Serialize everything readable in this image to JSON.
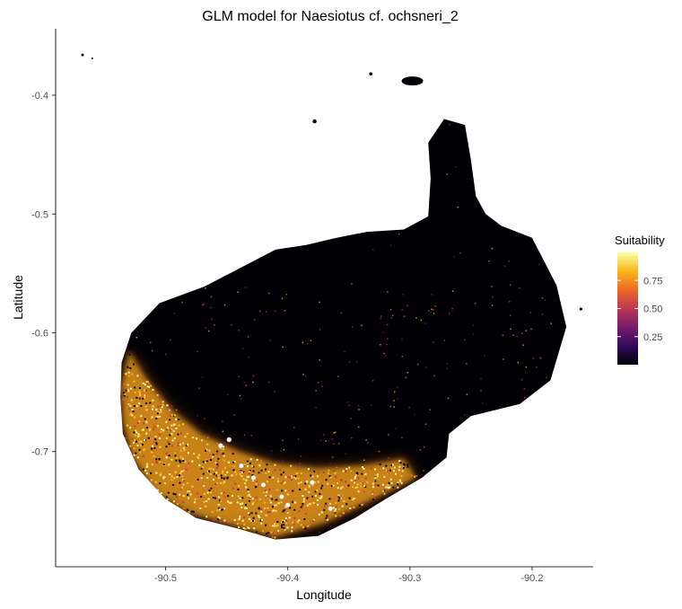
{
  "chart_data": {
    "type": "heatmap",
    "title": "GLM model for Naesiotus cf. ochsneri_2",
    "xlabel": "Longitude",
    "ylabel": "Latitude",
    "xlim": [
      -90.59,
      -90.15
    ],
    "ylim": [
      -0.797,
      -0.344
    ],
    "x_ticks": [
      -90.5,
      -90.4,
      -90.3,
      -90.2
    ],
    "x_tick_labels": [
      "-90.5",
      "-90.4",
      "-90.3",
      "-90.2"
    ],
    "y_ticks": [
      -0.4,
      -0.5,
      -0.6,
      -0.7
    ],
    "y_tick_labels": [
      "-0.4",
      "-0.5",
      "-0.6",
      "-0.7"
    ],
    "grid": false,
    "legend": {
      "title": "Suitability",
      "placement": "right",
      "range": [
        0,
        1
      ],
      "ticks": [
        0.25,
        0.5,
        0.75
      ],
      "tick_labels": [
        "0.25",
        "0.50",
        "0.75"
      ],
      "colors": [
        "#000004",
        "#320a5e",
        "#781c6d",
        "#bc3754",
        "#ed6925",
        "#fbb61a",
        "#fcffa4"
      ]
    },
    "island_outline_lonlat": [
      [
        -90.468,
        -0.561
      ],
      [
        -90.44,
        -0.546
      ],
      [
        -90.41,
        -0.53
      ],
      [
        -90.385,
        -0.526
      ],
      [
        -90.36,
        -0.52
      ],
      [
        -90.335,
        -0.515
      ],
      [
        -90.305,
        -0.513
      ],
      [
        -90.285,
        -0.502
      ],
      [
        -90.283,
        -0.47
      ],
      [
        -90.285,
        -0.44
      ],
      [
        -90.272,
        -0.42
      ],
      [
        -90.255,
        -0.425
      ],
      [
        -90.25,
        -0.455
      ],
      [
        -90.246,
        -0.485
      ],
      [
        -90.238,
        -0.5
      ],
      [
        -90.225,
        -0.51
      ],
      [
        -90.2,
        -0.52
      ],
      [
        -90.18,
        -0.56
      ],
      [
        -90.172,
        -0.595
      ],
      [
        -90.185,
        -0.64
      ],
      [
        -90.21,
        -0.66
      ],
      [
        -90.25,
        -0.67
      ],
      [
        -90.268,
        -0.685
      ],
      [
        -90.27,
        -0.705
      ],
      [
        -90.29,
        -0.722
      ],
      [
        -90.32,
        -0.74
      ],
      [
        -90.345,
        -0.756
      ],
      [
        -90.375,
        -0.771
      ],
      [
        -90.41,
        -0.774
      ],
      [
        -90.44,
        -0.765
      ],
      [
        -90.475,
        -0.756
      ],
      [
        -90.5,
        -0.74
      ],
      [
        -90.522,
        -0.715
      ],
      [
        -90.535,
        -0.685
      ],
      [
        -90.537,
        -0.655
      ],
      [
        -90.536,
        -0.625
      ],
      [
        -90.528,
        -0.6
      ],
      [
        -90.505,
        -0.575
      ]
    ],
    "suitable_band_lonlat": [
      [
        -90.53,
        -0.615
      ],
      [
        -90.515,
        -0.64
      ],
      [
        -90.495,
        -0.665
      ],
      [
        -90.47,
        -0.686
      ],
      [
        -90.44,
        -0.7
      ],
      [
        -90.41,
        -0.71
      ],
      [
        -90.375,
        -0.714
      ],
      [
        -90.34,
        -0.712
      ],
      [
        -90.305,
        -0.706
      ],
      [
        -90.295,
        -0.722
      ],
      [
        -90.33,
        -0.74
      ],
      [
        -90.37,
        -0.76
      ],
      [
        -90.41,
        -0.772
      ],
      [
        -90.445,
        -0.762
      ],
      [
        -90.48,
        -0.752
      ],
      [
        -90.508,
        -0.735
      ],
      [
        -90.527,
        -0.705
      ],
      [
        -90.535,
        -0.675
      ],
      [
        -90.536,
        -0.645
      ]
    ],
    "occurrence_points_lonlat": [
      [
        -90.455,
        -0.695
      ],
      [
        -90.448,
        -0.69
      ],
      [
        -90.438,
        -0.712
      ],
      [
        -90.428,
        -0.722
      ],
      [
        -90.42,
        -0.728
      ],
      [
        -90.405,
        -0.738
      ],
      [
        -90.38,
        -0.726
      ],
      [
        -90.365,
        -0.748
      ],
      [
        -90.4,
        -0.745
      ]
    ]
  }
}
